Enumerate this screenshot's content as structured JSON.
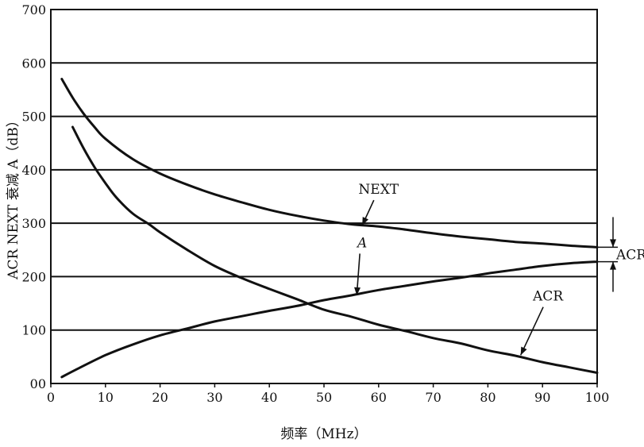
{
  "chart_data": {
    "type": "line",
    "xlabel": "频率（MHz）",
    "ylabel": "ACR NEXT 衰减 A（dB）",
    "xlim": [
      0,
      100
    ],
    "ylim": [
      0,
      700
    ],
    "x_ticks": [
      "0",
      "10",
      "20",
      "30",
      "40",
      "50",
      "60",
      "70",
      "80",
      "90",
      "100"
    ],
    "y_ticks": [
      "00",
      "100",
      "200",
      "300",
      "400",
      "500",
      "600",
      "700"
    ],
    "grid": "horizontal",
    "series": [
      {
        "name": "NEXT",
        "x": [
          2,
          4,
          6,
          8,
          10,
          15,
          20,
          25,
          30,
          35,
          40,
          45,
          50,
          55,
          60,
          65,
          70,
          75,
          80,
          85,
          90,
          95,
          100
        ],
        "y": [
          570,
          535,
          505,
          480,
          458,
          420,
          393,
          372,
          354,
          339,
          325,
          314,
          305,
          298,
          294,
          288,
          281,
          275,
          270,
          265,
          262,
          258,
          255
        ]
      },
      {
        "name": "A",
        "x": [
          2,
          5,
          10,
          15,
          20,
          25,
          30,
          35,
          40,
          45,
          50,
          55,
          60,
          65,
          70,
          75,
          80,
          85,
          90,
          95,
          100
        ],
        "y": [
          12,
          28,
          53,
          73,
          90,
          103,
          116,
          126,
          136,
          145,
          156,
          165,
          175,
          183,
          191,
          198,
          206,
          213,
          220,
          225,
          228
        ]
      },
      {
        "name": "ACR",
        "x": [
          4,
          6,
          8,
          10,
          12,
          15,
          18,
          20,
          25,
          30,
          35,
          40,
          45,
          50,
          55,
          60,
          65,
          70,
          75,
          80,
          85,
          90,
          95,
          100
        ],
        "y": [
          480,
          440,
          405,
          375,
          348,
          318,
          298,
          283,
          250,
          220,
          197,
          177,
          158,
          138,
          125,
          110,
          98,
          85,
          75,
          62,
          52,
          40,
          30,
          20
        ]
      }
    ],
    "annotations": [
      {
        "label": "NEXT",
        "target": [
          57,
          296
        ],
        "text_pos": [
          60,
          355
        ]
      },
      {
        "label": "A",
        "target": [
          56,
          165
        ],
        "text_pos": [
          57,
          255
        ]
      },
      {
        "label": "ACR",
        "target": [
          86,
          53
        ],
        "text_pos": [
          91,
          155
        ]
      }
    ],
    "bracket_label": "ACR"
  }
}
